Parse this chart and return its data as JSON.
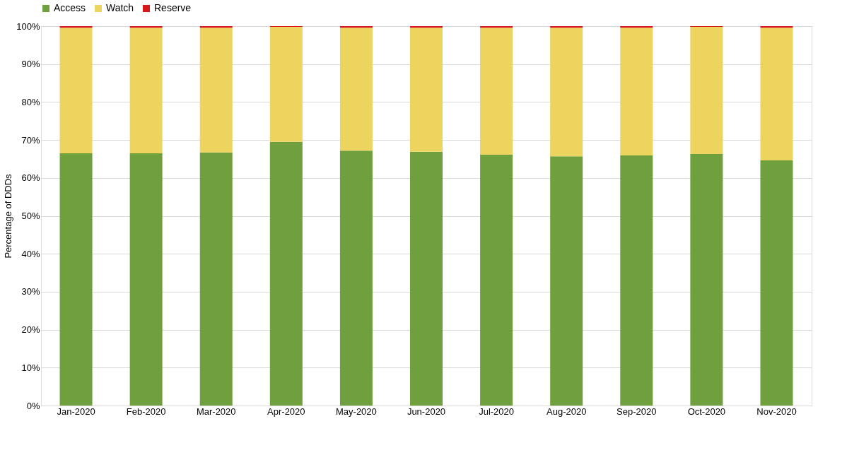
{
  "chart_data": {
    "type": "bar",
    "stacked": true,
    "ylabel": "Percentage of DDDs",
    "categories": [
      "Jan-2020",
      "Feb-2020",
      "Mar-2020",
      "Apr-2020",
      "May-2020",
      "Jun-2020",
      "Jul-2020",
      "Aug-2020",
      "Sep-2020",
      "Oct-2020",
      "Nov-2020"
    ],
    "series": [
      {
        "name": "Access",
        "color": "#70a03e",
        "values": [
          66.5,
          66.5,
          66.7,
          69.5,
          67.2,
          66.9,
          66.1,
          65.7,
          65.9,
          66.3,
          64.6
        ]
      },
      {
        "name": "Watch",
        "color": "#ecd45e",
        "values": [
          33.1,
          33.1,
          32.9,
          30.3,
          32.4,
          32.7,
          33.5,
          33.9,
          33.7,
          33.5,
          35.0
        ]
      },
      {
        "name": "Reserve",
        "color": "#d7191c",
        "values": [
          0.4,
          0.4,
          0.4,
          0.2,
          0.4,
          0.4,
          0.4,
          0.4,
          0.4,
          0.2,
          0.4
        ]
      }
    ],
    "ylim": [
      0,
      100
    ],
    "yticks": [
      {
        "value": 0,
        "label": "0%"
      },
      {
        "value": 10,
        "label": "10%"
      },
      {
        "value": 20,
        "label": "20%"
      },
      {
        "value": 30,
        "label": "30%"
      },
      {
        "value": 40,
        "label": "40%"
      },
      {
        "value": 50,
        "label": "50%"
      },
      {
        "value": 60,
        "label": "60%"
      },
      {
        "value": 70,
        "label": "70%"
      },
      {
        "value": 80,
        "label": "80%"
      },
      {
        "value": 90,
        "label": "90%"
      },
      {
        "value": 100,
        "label": "100%"
      }
    ],
    "grid": "y",
    "legend": "top"
  }
}
